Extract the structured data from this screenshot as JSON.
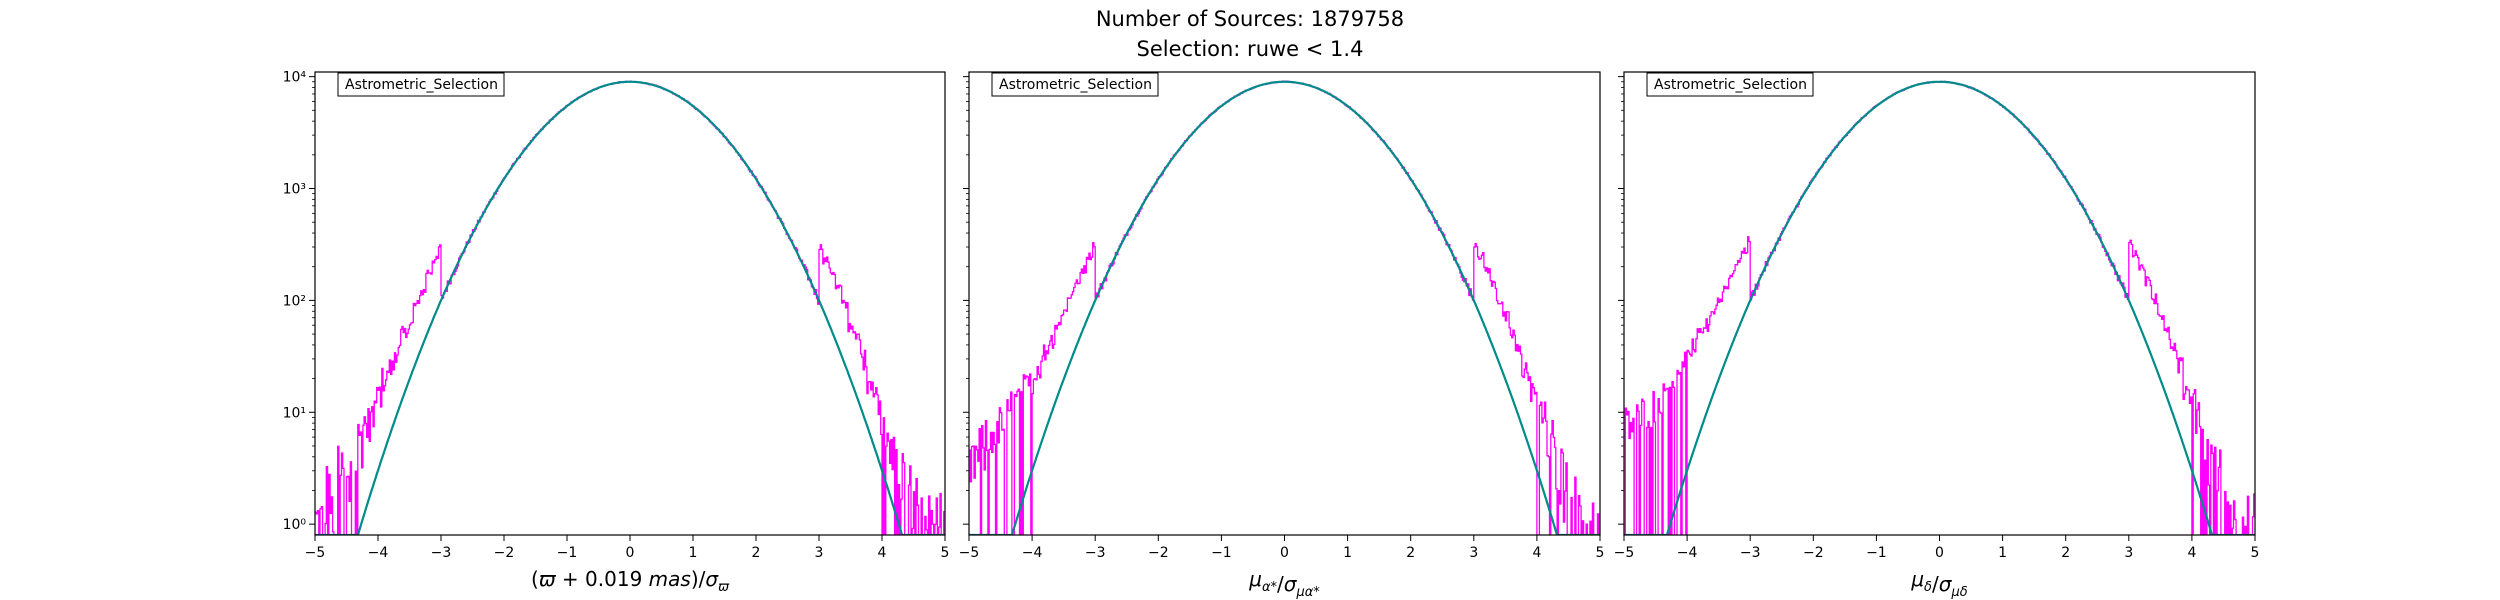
{
  "figure": {
    "title": "Number of Sources: 1879758",
    "subtitle": "Selection: ruwe < 1.4"
  },
  "colors": {
    "histogram": "#ff00ff",
    "model_curve": "#008b8b",
    "axes": "#000000",
    "legend_border": "#000000"
  },
  "chart_data": [
    {
      "type": "line",
      "xlabel_parts": [
        {
          "t": "(",
          "style": "normal"
        },
        {
          "t": "ϖ",
          "style": "italic"
        },
        {
          "t": " + 0.019 ",
          "style": "normal"
        },
        {
          "t": "mas",
          "style": "italic"
        },
        {
          "t": ")/",
          "style": "normal"
        },
        {
          "t": "σ",
          "style": "italic"
        },
        {
          "t": "ϖ",
          "style": "sub"
        }
      ],
      "legend": "Astrometric_Selection",
      "legend_position": "top-left",
      "xlim": [
        -5,
        5
      ],
      "ylim": [
        0.8,
        11000
      ],
      "yscale": "log",
      "grid": false,
      "xticks": [
        "−5",
        "−4",
        "−3",
        "−2",
        "−1",
        "0",
        "1",
        "2",
        "3",
        "4",
        "5"
      ],
      "yticks": [
        "10⁰",
        "10¹",
        "10²",
        "10³",
        "10⁴"
      ],
      "model_peak": 9000,
      "series": [
        {
          "kind": "histogram",
          "x": [
            -5.0,
            -4.9,
            -4.8,
            -4.7,
            -4.6,
            -4.5,
            -4.4,
            -4.3,
            -4.2,
            -4.1,
            -4.0,
            -3.9,
            -3.8,
            -3.7,
            -3.6,
            -3.5,
            -3.4,
            -3.3,
            -3.2,
            -3.1,
            -3.0,
            3.0,
            3.1,
            3.2,
            3.3,
            3.4,
            3.5,
            3.6,
            3.7,
            3.8,
            3.9,
            4.0,
            4.1,
            4.2,
            4.3,
            4.4,
            4.5,
            4.6,
            4.7,
            4.8,
            4.9,
            5.0
          ],
          "y": [
            1,
            1,
            2,
            1,
            3,
            2,
            4,
            6,
            8,
            9,
            15,
            20,
            25,
            35,
            50,
            60,
            90,
            120,
            180,
            230,
            300,
            300,
            230,
            180,
            130,
            90,
            60,
            45,
            30,
            20,
            14,
            10,
            6,
            4,
            3,
            2,
            1.5,
            1,
            1,
            1,
            1,
            1
          ]
        }
      ]
    },
    {
      "type": "line",
      "xlabel_parts": [
        {
          "t": "μ",
          "style": "italic"
        },
        {
          "t": "α*",
          "style": "sub"
        },
        {
          "t": "/",
          "style": "normal"
        },
        {
          "t": "σ",
          "style": "italic"
        },
        {
          "t": "μα*",
          "style": "sub"
        }
      ],
      "legend": "Astrometric_Selection",
      "legend_position": "top-left",
      "xlim": [
        -5,
        5
      ],
      "ylim": [
        0.8,
        11000
      ],
      "yscale": "log",
      "grid": false,
      "xticks": [
        "−5",
        "−4",
        "−3",
        "−2",
        "−1",
        "0",
        "1",
        "2",
        "3",
        "4",
        "5"
      ],
      "yticks": [],
      "model_peak": 9000,
      "series": [
        {
          "kind": "histogram",
          "x": [
            -5.0,
            -4.9,
            -4.8,
            -4.7,
            -4.6,
            -4.5,
            -4.4,
            -4.3,
            -4.2,
            -4.1,
            -4.0,
            -3.9,
            -3.8,
            -3.7,
            -3.6,
            -3.5,
            -3.4,
            -3.3,
            -3.2,
            -3.1,
            -3.0,
            3.0,
            3.1,
            3.2,
            3.3,
            3.4,
            3.5,
            3.6,
            3.7,
            3.8,
            3.9,
            4.0,
            4.1,
            4.2,
            4.3,
            4.4,
            4.5,
            4.6,
            4.7,
            4.8,
            4.9,
            5.0
          ],
          "y": [
            3,
            4,
            5,
            6,
            7,
            8,
            10,
            12,
            14,
            17,
            20,
            25,
            35,
            45,
            60,
            80,
            110,
            140,
            190,
            250,
            320,
            320,
            250,
            190,
            140,
            100,
            70,
            50,
            35,
            25,
            17,
            12,
            9,
            6,
            4,
            3,
            2,
            1.5,
            1,
            1,
            1,
            1
          ]
        }
      ]
    },
    {
      "type": "line",
      "xlabel_parts": [
        {
          "t": "μ",
          "style": "italic"
        },
        {
          "t": "δ",
          "style": "sub"
        },
        {
          "t": "/",
          "style": "normal"
        },
        {
          "t": "σ",
          "style": "italic"
        },
        {
          "t": "μδ",
          "style": "sub"
        }
      ],
      "legend": "Astrometric_Selection",
      "legend_position": "top-left",
      "xlim": [
        -5,
        5
      ],
      "ylim": [
        0.8,
        11000
      ],
      "yscale": "log",
      "grid": false,
      "xticks": [
        "−5",
        "−4",
        "−3",
        "−2",
        "−1",
        "0",
        "1",
        "2",
        "3",
        "4",
        "5"
      ],
      "yticks": [],
      "model_peak": 9000,
      "series": [
        {
          "kind": "histogram",
          "x": [
            -5.0,
            -4.9,
            -4.8,
            -4.7,
            -4.6,
            -4.5,
            -4.4,
            -4.3,
            -4.2,
            -4.1,
            -4.0,
            -3.9,
            -3.8,
            -3.7,
            -3.6,
            -3.5,
            -3.4,
            -3.3,
            -3.2,
            -3.1,
            -3.0,
            3.0,
            3.1,
            3.2,
            3.3,
            3.4,
            3.5,
            3.6,
            3.7,
            3.8,
            3.9,
            4.0,
            4.1,
            4.2,
            4.3,
            4.4,
            4.5,
            4.6,
            4.7,
            4.8,
            4.9,
            5.0
          ],
          "y": [
            8,
            8,
            9,
            10,
            11,
            12,
            14,
            17,
            20,
            25,
            30,
            38,
            48,
            60,
            80,
            100,
            130,
            170,
            220,
            280,
            350,
            330,
            260,
            200,
            150,
            105,
            75,
            50,
            35,
            25,
            17,
            12,
            9,
            6,
            4,
            3,
            2,
            1.5,
            1,
            1,
            1,
            1
          ]
        }
      ]
    }
  ]
}
